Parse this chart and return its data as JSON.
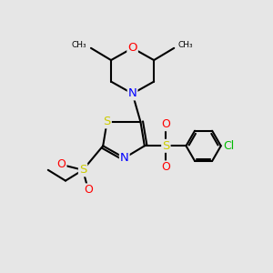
{
  "bg_color": "#e6e6e6",
  "bond_color": "#000000",
  "bond_width": 1.5,
  "atom_colors": {
    "S": "#cccc00",
    "N": "#0000ff",
    "O": "#ff0000",
    "Cl": "#00bb00",
    "C": "#000000"
  }
}
